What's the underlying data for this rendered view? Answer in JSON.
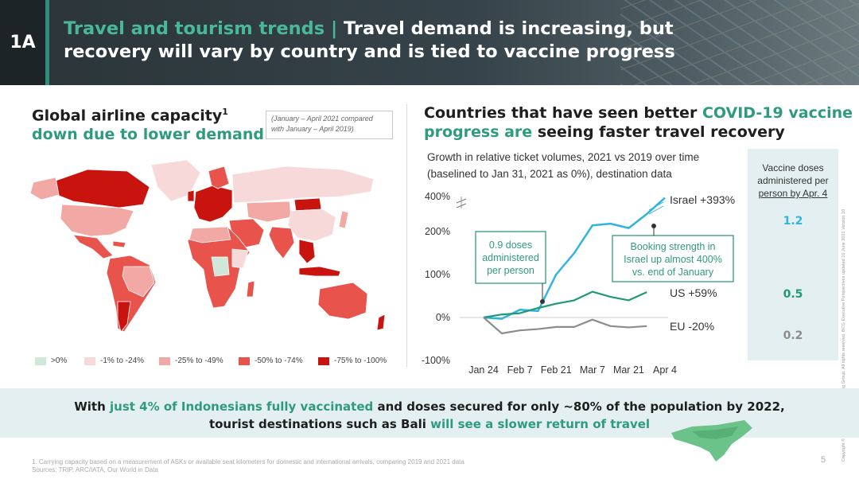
{
  "header": {
    "badge": "1A",
    "title_accent": "Travel and tourism trends",
    "title_sep": " | ",
    "title_line1": "Travel demand is increasing, but",
    "title_line2": "recovery will vary by country and is tied to vaccine progress"
  },
  "left": {
    "title_line1": "Global airline capacity",
    "title_sup": "1",
    "title_line2_accent": "down due to lower demand",
    "note": "(January – April 2021 compared with January – April 2019)",
    "legend": [
      {
        "label": ">0%",
        "color": "#cfe8d9"
      },
      {
        "label": "-1% to -24%",
        "color": "#f7d9d9"
      },
      {
        "label": "-25% to -49%",
        "color": "#f2a8a4"
      },
      {
        "label": "-50% to -74%",
        "color": "#e8534c"
      },
      {
        "label": "-75% to -100%",
        "color": "#c9130f"
      }
    ]
  },
  "right": {
    "title_line1_plain": "Countries that have seen better ",
    "title_line1_accent": "COVID-19 vaccine",
    "title_line2_accent": "progress are",
    "title_line2_plain": " seeing faster travel recovery",
    "subtitle_line1": "Growth in relative ticket volumes, 2021 vs 2019 over time",
    "subtitle_line2": "(baselined to Jan 31, 2021 as 0%), destination data"
  },
  "chart_data": {
    "type": "line",
    "x": [
      "Jan 24",
      "Jan 31",
      "Feb 7",
      "Feb 14",
      "Feb 21",
      "Feb 28",
      "Mar 7",
      "Mar 14",
      "Mar 21",
      "Mar 28",
      "Apr 4"
    ],
    "xticks": [
      "Jan 24",
      "Feb 7",
      "Feb 21",
      "Mar 7",
      "Mar 21",
      "Apr 4"
    ],
    "yticks": [
      "400%",
      "200%",
      "100%",
      "0%",
      "-100%"
    ],
    "ylim": [
      -100,
      400
    ],
    "axis_break": true,
    "series": [
      {
        "name": "Israel",
        "end_label": "Israel +393%",
        "color": "#2eb4e0",
        "values": [
          0,
          -3,
          18,
          15,
          100,
          150,
          235,
          245,
          220,
          300,
          393
        ]
      },
      {
        "name": "US",
        "end_label": "US +59%",
        "color": "#1f9a72",
        "values": [
          0,
          7,
          10,
          22,
          32,
          40,
          60,
          48,
          40,
          59,
          null
        ]
      },
      {
        "name": "EU",
        "end_label": "EU -20%",
        "color": "#8c8c8c",
        "values": [
          0,
          -37,
          -30,
          -27,
          -22,
          -22,
          -5,
          -20,
          -23,
          -20,
          null
        ]
      }
    ],
    "annotations": [
      {
        "text_lines": [
          "0.9 doses",
          "administered",
          "per person"
        ]
      },
      {
        "text_lines": [
          "Booking strength in",
          "Israel up almost 400%",
          "vs. end of January"
        ]
      }
    ]
  },
  "vaccine": {
    "header_line1": "Vaccine doses",
    "header_line2": "administered per",
    "header_line3": "person by Apr. 4",
    "israel": "1.2",
    "us": "0.5",
    "eu": "0.2",
    "israel_color": "#2eb4e0",
    "us_color": "#1f9a72",
    "eu_color": "#8c8c8c"
  },
  "callout": {
    "p1": "With ",
    "p2_accent": "just 4% of Indonesians fully vaccinated",
    "p3": " and doses secured for only ~80% of the population by 2022,",
    "p4": "tourist destinations such as Bali ",
    "p5_accent": "will see a slower return of travel"
  },
  "footer": {
    "footnote_line1": "1. Carrying capacity based on a measurement of ASKs or available seat kilometers for domestic and international arrivals, comparing 2019 and 2021 data",
    "footnote_line2": "Sources: TRIP, ARC/IATA, Our World in Data",
    "page": "5",
    "copyright": "Copyright © 2021 by Boston Consulting Group. All rights reserved. BCG Executive Perspectives updated 10 June 2021 Version 10"
  },
  "colors": {
    "accent": "#2f9b7e",
    "banner": "#36434a",
    "band": "#e3eff0"
  }
}
